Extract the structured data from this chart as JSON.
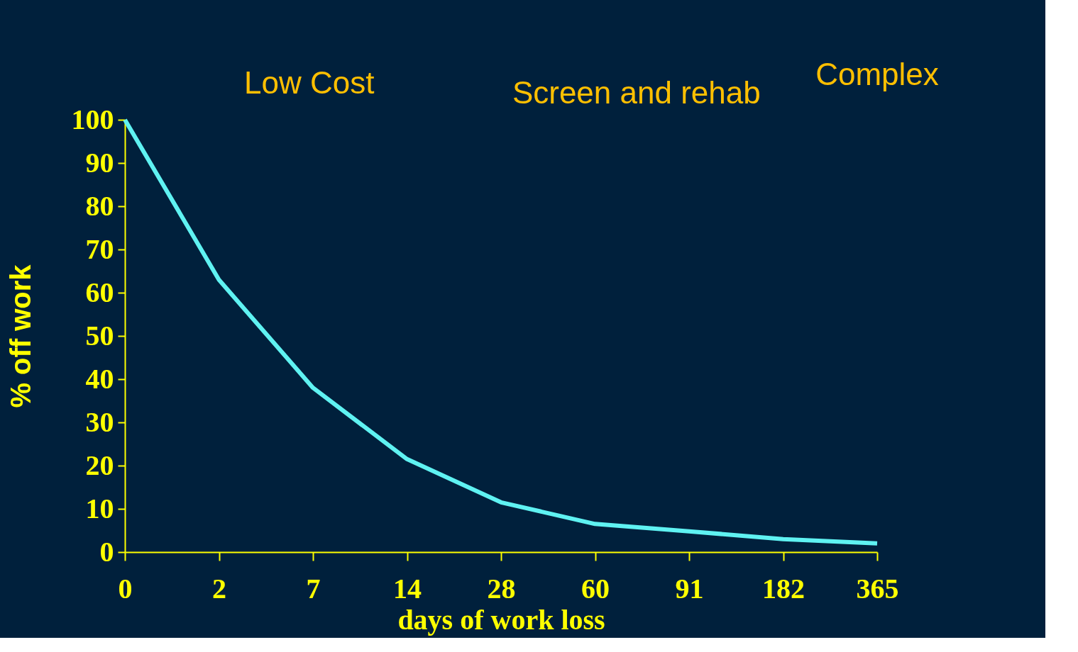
{
  "chart_data": {
    "type": "line",
    "xlabel": "days of work loss",
    "ylabel": "% off work",
    "categories": [
      "0",
      "2",
      "7",
      "14",
      "28",
      "60",
      "91",
      "182",
      "365"
    ],
    "series": [
      {
        "color": "#5ff2f2",
        "values": [
          100,
          63,
          38,
          21.5,
          11.5,
          6.5,
          4.8,
          3,
          2
        ]
      }
    ],
    "ylim": [
      0,
      100
    ],
    "yticks": [
      0,
      10,
      20,
      30,
      40,
      50,
      60,
      70,
      80,
      90,
      100
    ],
    "annotations": [
      "Low Cost",
      "Screen and rehab",
      "Complex"
    ],
    "grid": false,
    "marker": "none",
    "line_style": "solid"
  }
}
